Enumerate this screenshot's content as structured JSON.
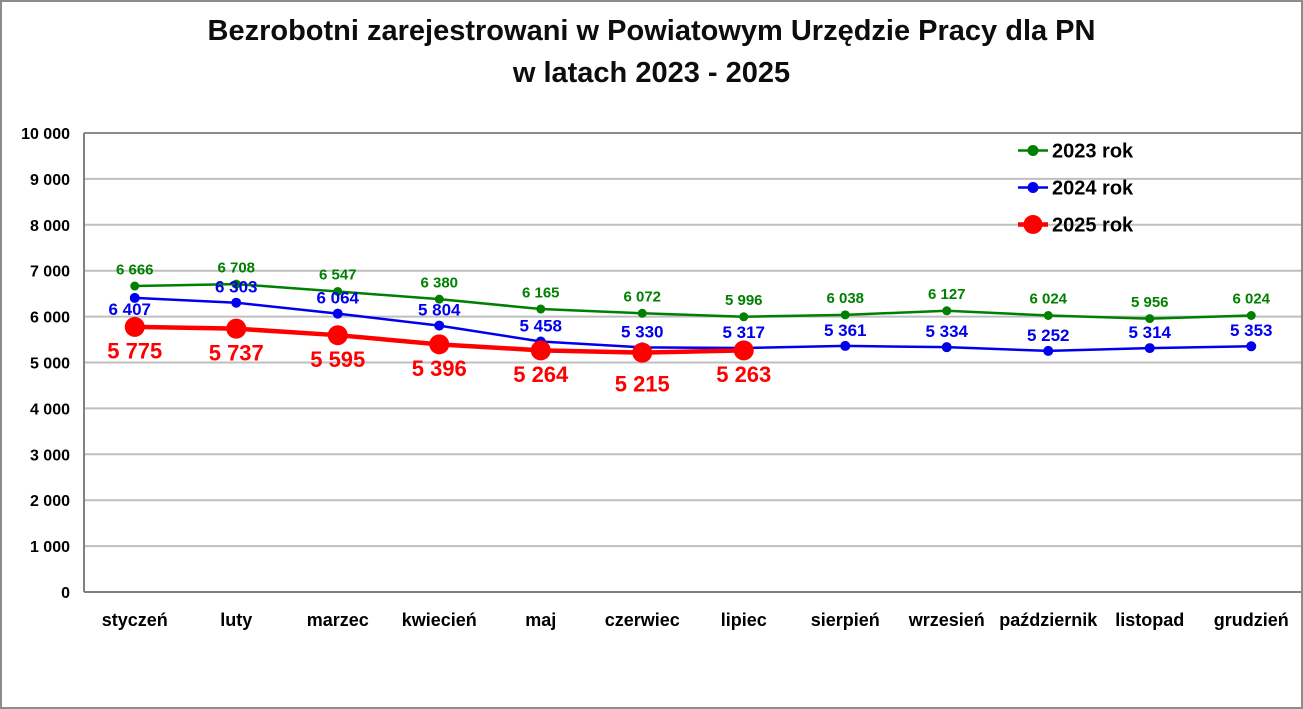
{
  "frame": {
    "background": "#FFFFFF",
    "border_color": "#8C8C8C"
  },
  "chart_data": {
    "type": "line",
    "title_line1": "Bezrobotni zarejestrowani w Powiatowym Urzędzie Pracy dla PN",
    "title_line2": "w latach 2023 - 2025",
    "categories": [
      "styczeń",
      "luty",
      "marzec",
      "kwiecień",
      "maj",
      "czerwiec",
      "lipiec",
      "sierpień",
      "wrzesień",
      "październik",
      "listopad",
      "grudzień"
    ],
    "series": [
      {
        "name": "2023 rok",
        "color": "#008000",
        "values": [
          6666,
          6708,
          6547,
          6380,
          6165,
          6072,
          5996,
          6038,
          6127,
          6024,
          5956,
          6024
        ],
        "labels": [
          "6 666",
          "6 708",
          "6 547",
          "6 380",
          "6 165",
          "6 072",
          "5 996",
          "6 038",
          "6 127",
          "6 024",
          "5 956",
          "6 024"
        ]
      },
      {
        "name": "2024 rok",
        "color": "#0000EE",
        "values": [
          6407,
          6303,
          6064,
          5804,
          5458,
          5330,
          5317,
          5361,
          5334,
          5252,
          5314,
          5353
        ],
        "labels": [
          "6 407",
          "6 303",
          "6 064",
          "5 804",
          "5 458",
          "5 330",
          "5 317",
          "5 361",
          "5 334",
          "5 252",
          "5 314",
          "5 353"
        ]
      },
      {
        "name": "2025 rok",
        "color": "#FF0000",
        "values": [
          5775,
          5737,
          5595,
          5396,
          5264,
          5215,
          5263
        ],
        "labels": [
          "5 775",
          "5 737",
          "5 595",
          "5 396",
          "5 264",
          "5 215",
          "5 263"
        ]
      }
    ],
    "ylim": [
      0,
      10000
    ],
    "ytick_step": 1000,
    "ytick_labels": [
      "0",
      "1 000",
      "2 000",
      "3 000",
      "4 000",
      "5 000",
      "6 000",
      "7 000",
      "8 000",
      "9 000",
      "10 000"
    ],
    "grid": true,
    "gridline_color": "#BFBFBF",
    "top_gridline_color": "#8C8C8C",
    "axis_color": "#808080",
    "legend_position": "top-right"
  }
}
